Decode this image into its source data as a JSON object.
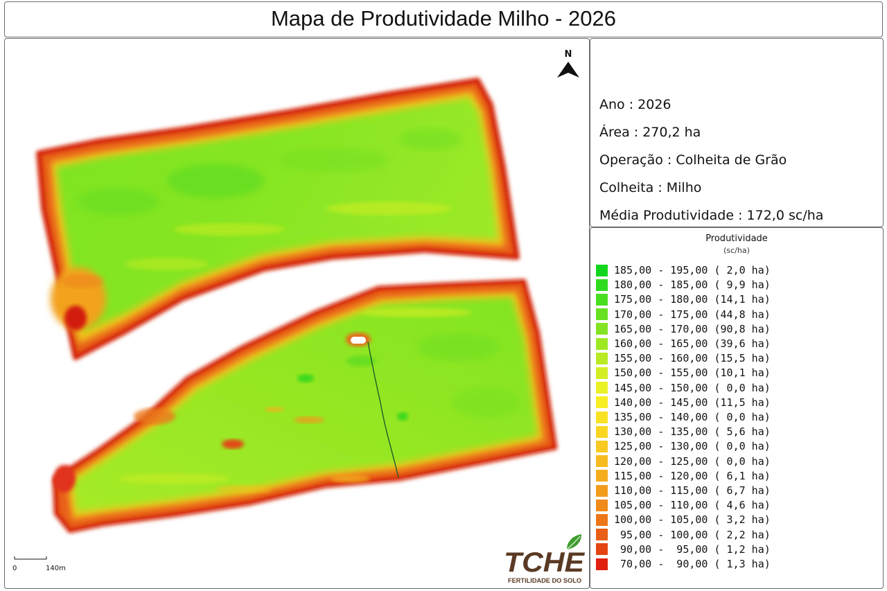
{
  "title": "Mapa de Produtividade Milho - 2026",
  "info": [
    "Ano : 2026",
    "Área : 270,2 ha",
    "Operação  : Colheita de Grão",
    "Colheita : Milho",
    "Média Produtividade : 172,0 sc/ha"
  ],
  "north_label": "N",
  "scale": {
    "start": "0",
    "end": "140m"
  },
  "logo": {
    "brand": "TCHE",
    "tagline": "FERTILIDADE DO SOLO"
  },
  "legend": {
    "title": "Produtividade",
    "unit": "(sc/ha)",
    "classes": [
      {
        "label": "185,00 - 195,00 ( 2,0 ha)",
        "color": "#12d61e"
      },
      {
        "label": "180,00 - 185,00 ( 9,9 ha)",
        "color": "#2fdb1f"
      },
      {
        "label": "175,00 - 180,00 (14,1 ha)",
        "color": "#4ade20"
      },
      {
        "label": "170,00 - 175,00 (44,8 ha)",
        "color": "#66e121"
      },
      {
        "label": "165,00 - 170,00 (90,8 ha)",
        "color": "#82e422"
      },
      {
        "label": "160,00 - 165,00 (39,6 ha)",
        "color": "#9ce823"
      },
      {
        "label": "155,00 - 160,00 (15,5 ha)",
        "color": "#b8eb23"
      },
      {
        "label": "150,00 - 155,00 (10,1 ha)",
        "color": "#d2ee24"
      },
      {
        "label": "145,00 - 150,00 ( 0,0 ha)",
        "color": "#eaf124"
      },
      {
        "label": "140,00 - 145,00 (11,5 ha)",
        "color": "#f7ee24"
      },
      {
        "label": "135,00 - 140,00 ( 0,0 ha)",
        "color": "#f8e223"
      },
      {
        "label": "130,00 - 135,00 ( 5,6 ha)",
        "color": "#f8d622"
      },
      {
        "label": "125,00 - 130,00 ( 0,0 ha)",
        "color": "#f8c921"
      },
      {
        "label": "120,00 - 125,00 ( 0,0 ha)",
        "color": "#f7bb20"
      },
      {
        "label": "115,00 - 120,00 ( 6,1 ha)",
        "color": "#f5ac1e"
      },
      {
        "label": "110,00 - 115,00 ( 6,7 ha)",
        "color": "#f39c1c"
      },
      {
        "label": "105,00 - 110,00 ( 4,6 ha)",
        "color": "#f08a1a"
      },
      {
        "label": "100,00 - 105,00 ( 3,2 ha)",
        "color": "#ec7618"
      },
      {
        "label": " 95,00 - 100,00 ( 2,2 ha)",
        "color": "#e85f15"
      },
      {
        "label": " 90,00 -  95,00 ( 1,2 ha)",
        "color": "#e44512"
      },
      {
        "label": " 70,00 -  90,00 ( 1,3 ha)",
        "color": "#e0200f"
      }
    ]
  },
  "colors": {
    "field_main": "#8fe624",
    "field_edge": "#e8601a",
    "field_edge_dark": "#d42010"
  }
}
